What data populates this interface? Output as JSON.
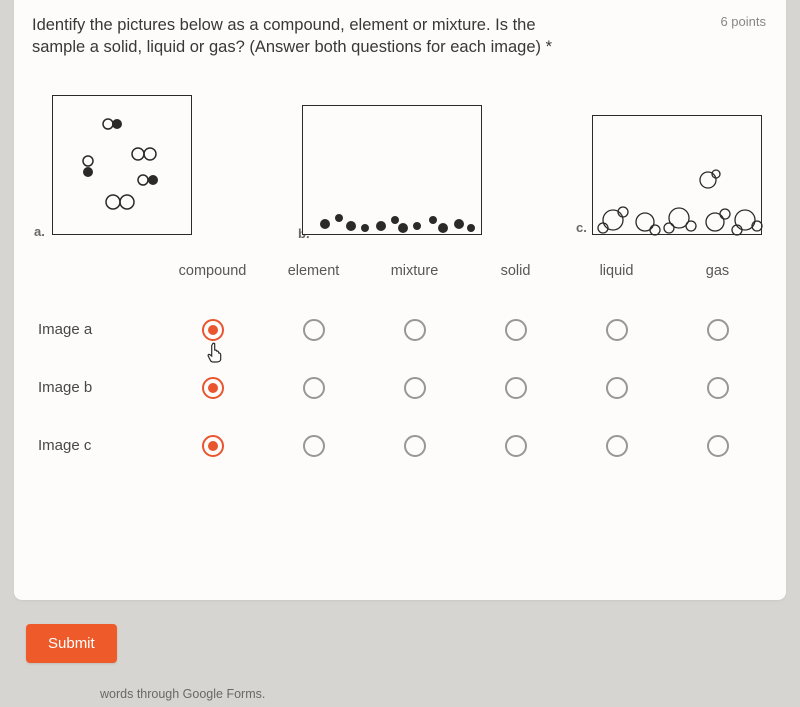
{
  "question": {
    "text_line1": "Identify the pictures below as a compound, element or mixture. Is the",
    "text_line2": "sample a solid, liquid or gas? (Answer both questions for each image) *",
    "points_label": "6 points"
  },
  "images": {
    "a": {
      "label": "a."
    },
    "b": {
      "label": "b."
    },
    "c": {
      "label": "c."
    }
  },
  "columns": [
    "compound",
    "element",
    "mixture",
    "solid",
    "liquid",
    "gas"
  ],
  "rows": [
    {
      "label": "Image a",
      "selected": 0,
      "cursor": true
    },
    {
      "label": "Image b",
      "selected": 0,
      "cursor": false
    },
    {
      "label": "Image c",
      "selected": 0,
      "cursor": false
    }
  ],
  "submit_label": "Submit",
  "footer_text": "words through Google Forms.",
  "colors": {
    "accent": "#ee5a2a",
    "page_bg": "#d7d5d2",
    "card_bg": "#fdfcfb",
    "text": "#3a3836",
    "muted": "#8a8683",
    "radio_border": "#9a9692"
  }
}
